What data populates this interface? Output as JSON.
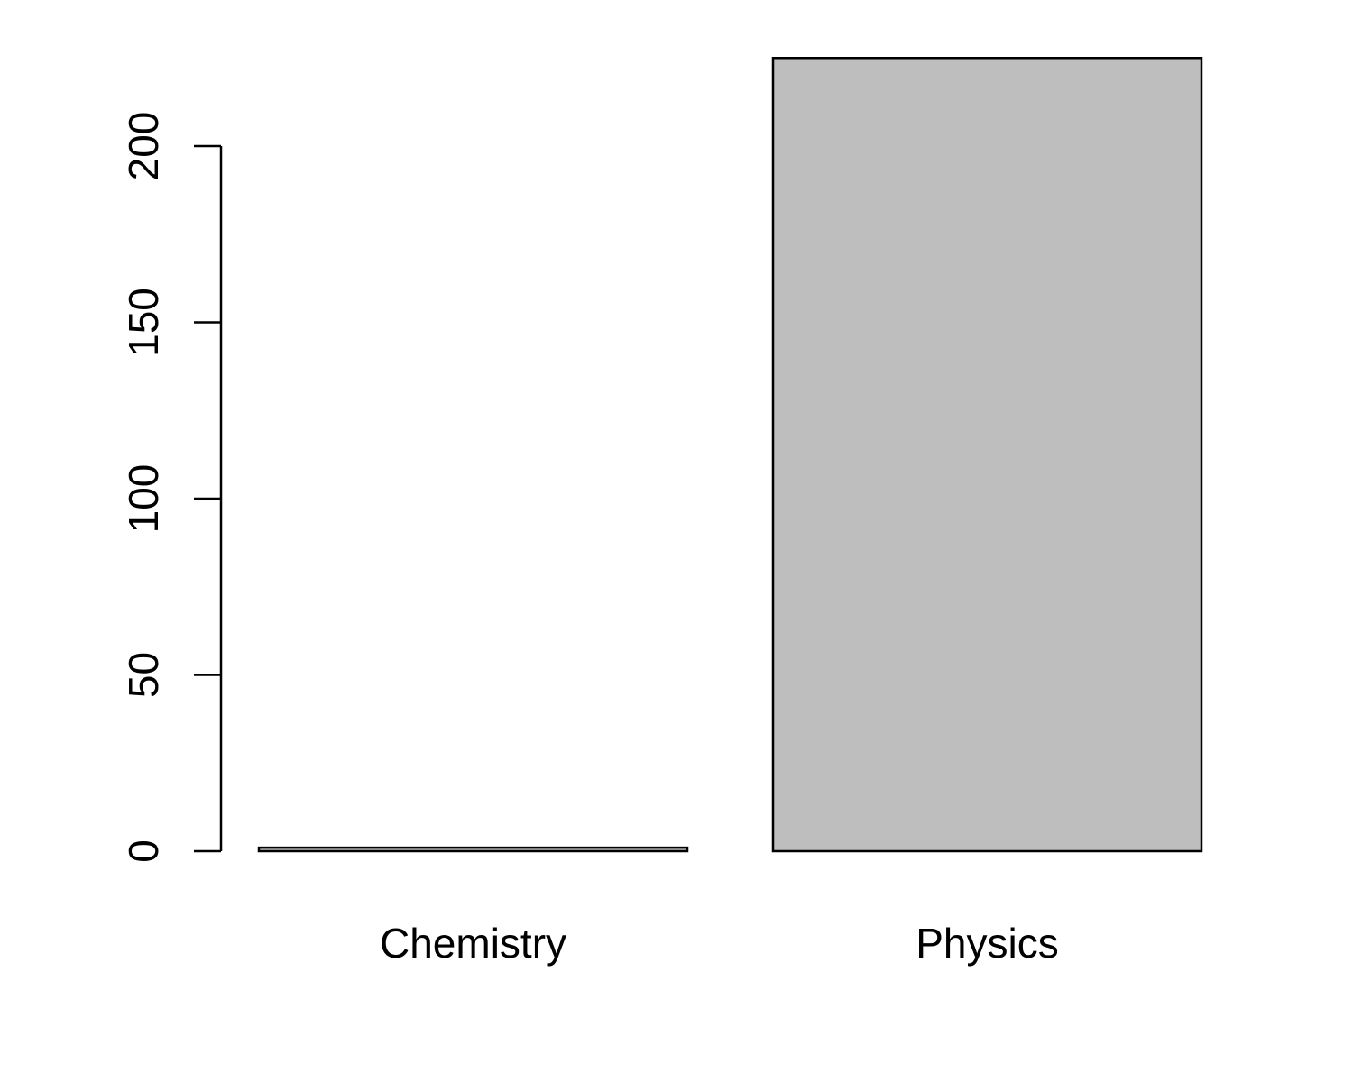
{
  "chart_data": {
    "type": "bar",
    "categories": [
      "Chemistry",
      "Physics"
    ],
    "values": [
      1,
      225
    ],
    "ylim": [
      0,
      200
    ],
    "yticks": [
      0,
      50,
      100,
      150,
      200
    ],
    "bar_color": "#bebebe",
    "grid": false,
    "legend": "none"
  }
}
